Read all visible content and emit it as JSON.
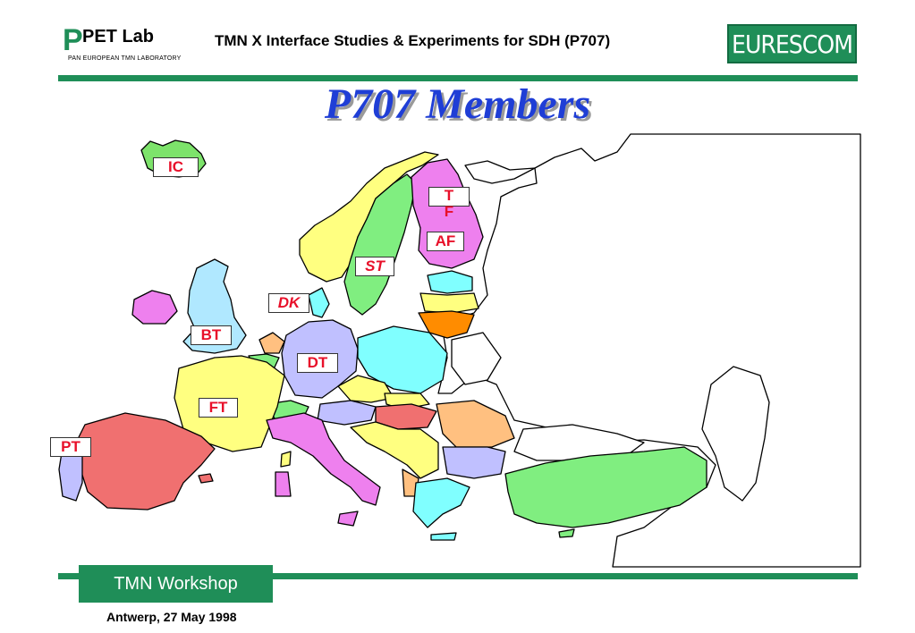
{
  "header": {
    "logo_letter": "P",
    "logo_text": "PET Lab",
    "logo_subtitle": "PAN  EUROPEAN  TMN LABORATORY",
    "title": "TMN X Interface Studies & Experiments for SDH (P707)",
    "brand": "EURESCOM",
    "brand_color": "#1f8e58"
  },
  "slide": {
    "title": "P707 Members",
    "title_color": "#1f3ed6"
  },
  "map": {
    "labels": {
      "ic": "IC",
      "tf": "T\nF",
      "af": "AF",
      "st": "ST",
      "dk": "DK",
      "bt": "BT",
      "dt": "DT",
      "ft": "FT",
      "pt": "PT"
    },
    "label_color": "#e8102a"
  },
  "footer": {
    "workshop": "TMN Workshop",
    "date": "Antwerp, 27 May 1998"
  }
}
